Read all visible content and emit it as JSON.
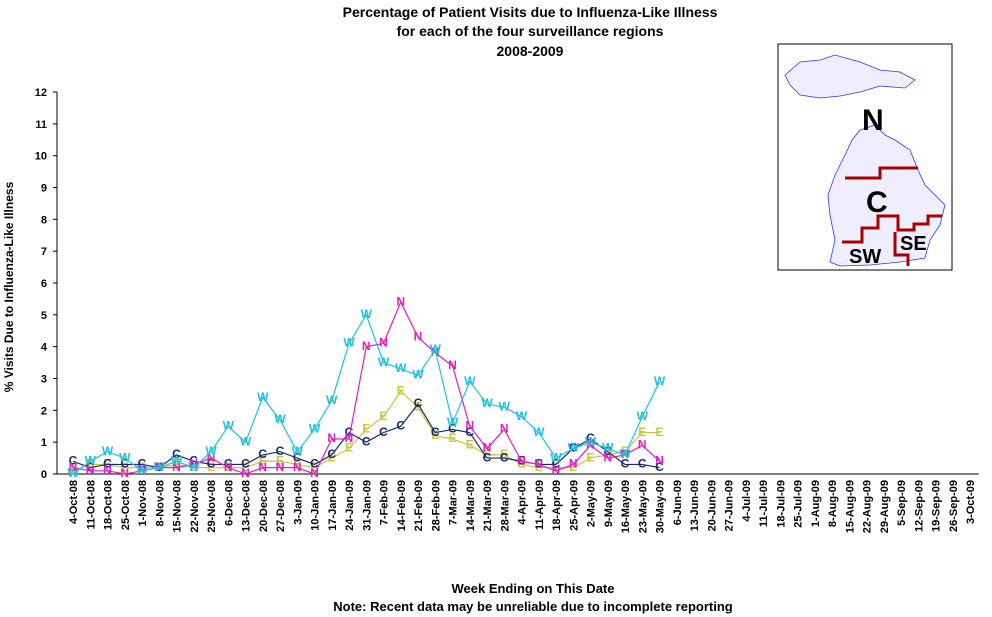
{
  "chart_data": {
    "type": "line",
    "title": [
      "Percentage of Patient Visits due to Influenza-Like Illness",
      "for each of the four surveillance regions",
      "2008-2009"
    ],
    "y_label": "% Visits Due to Influenza-Like Illness",
    "x_label": "Week Ending on This Date",
    "note": "Note: Recent data may be unreliable due to incomplete reporting",
    "map_labels": [
      "N",
      "C",
      "SW",
      "SE"
    ],
    "categories": [
      "4-Oct-08",
      "11-Oct-08",
      "18-Oct-08",
      "25-Oct-08",
      "1-Nov-08",
      "8-Nov-08",
      "15-Nov-08",
      "22-Nov-08",
      "29-Nov-08",
      "6-Dec-08",
      "13-Dec-08",
      "20-Dec-08",
      "27-Dec-08",
      "3-Jan-09",
      "10-Jan-09",
      "17-Jan-09",
      "24-Jan-09",
      "31-Jan-09",
      "7-Feb-09",
      "14-Feb-09",
      "21-Feb-09",
      "28-Feb-09",
      "7-Mar-09",
      "14-Mar-09",
      "21-Mar-09",
      "28-Mar-09",
      "4-Apr-09",
      "11-Apr-09",
      "18-Apr-09",
      "25-Apr-09",
      "2-May-09",
      "9-May-09",
      "16-May-09",
      "23-May-09",
      "30-May-09",
      "6-Jun-09",
      "13-Jun-09",
      "20-Jun-09",
      "27-Jun-09",
      "4-Jul-09",
      "11-Jul-09",
      "18-Jul-09",
      "25-Jul-09",
      "1-Aug-09",
      "8-Aug-09",
      "15-Aug-09",
      "22-Aug-09",
      "29-Aug-09",
      "5-Sep-09",
      "12-Sep-09",
      "19-Sep-09",
      "26-Sep-09",
      "3-Oct-09"
    ],
    "series": [
      {
        "name": "E",
        "color": "#c8c83c",
        "values": [
          0.1,
          0.3,
          0.3,
          0.2,
          0.2,
          0.2,
          0.3,
          0.2,
          0.2,
          0.2,
          0.2,
          0.4,
          0.4,
          0.3,
          0.2,
          0.5,
          0.8,
          1.4,
          1.8,
          2.6,
          2.1,
          1.2,
          1.1,
          0.9,
          0.6,
          0.6,
          0.3,
          0.2,
          0.2,
          0.2,
          0.5,
          0.6,
          0.7,
          1.3,
          1.3,
          null,
          null,
          null,
          null,
          null,
          null,
          null,
          null,
          null,
          null,
          null,
          null,
          null,
          null,
          null,
          null,
          null,
          null
        ]
      },
      {
        "name": "C",
        "color": "#1a2a6e",
        "values": [
          0.4,
          0.2,
          0.3,
          0.3,
          0.3,
          0.2,
          0.6,
          0.4,
          0.3,
          0.3,
          0.3,
          0.6,
          0.7,
          0.5,
          0.3,
          0.6,
          1.3,
          1.0,
          1.3,
          1.5,
          2.2,
          1.3,
          1.4,
          1.3,
          0.5,
          0.5,
          0.4,
          0.3,
          0.3,
          0.8,
          1.1,
          0.7,
          0.3,
          0.3,
          0.2,
          null,
          null,
          null,
          null,
          null,
          null,
          null,
          null,
          null,
          null,
          null,
          null,
          null,
          null,
          null,
          null,
          null,
          null
        ]
      },
      {
        "name": "N",
        "color": "#e020c0",
        "values": [
          0.2,
          0.1,
          0.1,
          0.0,
          0.1,
          0.2,
          0.2,
          0.3,
          0.5,
          0.2,
          0.0,
          0.2,
          0.2,
          0.2,
          0.0,
          1.1,
          1.1,
          4.0,
          4.1,
          5.4,
          4.3,
          3.8,
          3.4,
          1.5,
          0.8,
          1.4,
          0.4,
          0.3,
          0.1,
          0.3,
          0.9,
          0.5,
          0.6,
          0.9,
          0.4,
          null,
          null,
          null,
          null,
          null,
          null,
          null,
          null,
          null,
          null,
          null,
          null,
          null,
          null,
          null,
          null,
          null,
          null
        ]
      },
      {
        "name": "W",
        "color": "#20c0e0",
        "values": [
          0.0,
          0.4,
          0.7,
          0.5,
          0.1,
          0.2,
          0.4,
          0.2,
          0.7,
          1.5,
          1.0,
          2.4,
          1.7,
          0.7,
          1.4,
          2.3,
          4.1,
          5.0,
          3.5,
          3.3,
          3.1,
          3.9,
          1.6,
          2.9,
          2.2,
          2.1,
          1.8,
          1.3,
          0.5,
          0.8,
          1.0,
          0.8,
          0.6,
          1.8,
          2.9,
          null,
          null,
          null,
          null,
          null,
          null,
          null,
          null,
          null,
          null,
          null,
          null,
          null,
          null,
          null,
          null,
          null,
          null
        ]
      }
    ],
    "ylim": [
      0,
      12
    ],
    "yticks": [
      0,
      1,
      2,
      3,
      4,
      5,
      6,
      7,
      8,
      9,
      10,
      11,
      12
    ],
    "grid": false
  }
}
